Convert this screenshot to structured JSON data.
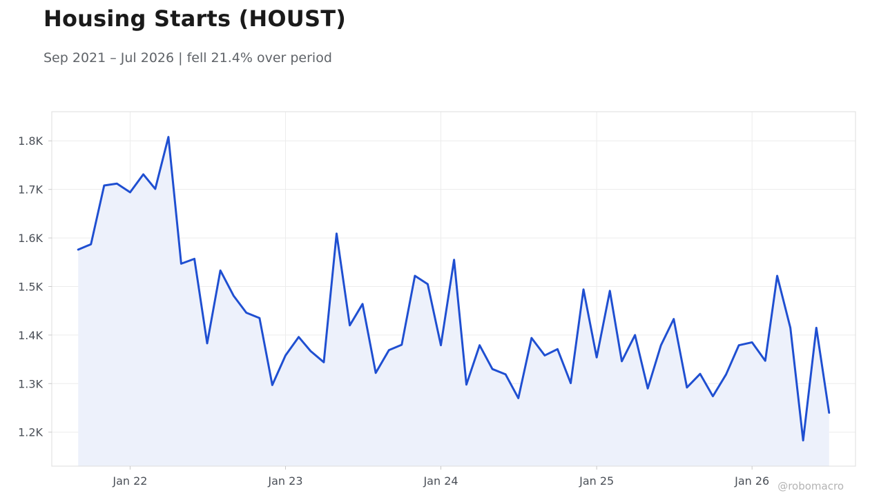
{
  "header": {
    "title": "Housing Starts (HOUST)",
    "subtitle": "Sep 2021 – Jul 2026 | fell 21.4% over period"
  },
  "watermark": "@robomacro",
  "colors": {
    "line": "#1f4fd1",
    "area": "#edf1fb",
    "grid": "#ececec",
    "frame": "#dddddd"
  },
  "chart_data": {
    "type": "area",
    "x_axis": {
      "type": "date",
      "range": [
        "2021-07-01",
        "2026-09-01"
      ],
      "ticks": [
        {
          "date": "2022-01-01",
          "label": "Jan 22"
        },
        {
          "date": "2023-01-01",
          "label": "Jan 23"
        },
        {
          "date": "2024-01-01",
          "label": "Jan 24"
        },
        {
          "date": "2025-01-01",
          "label": "Jan 25"
        },
        {
          "date": "2026-01-01",
          "label": "Jan 26"
        }
      ]
    },
    "y_axis": {
      "range": [
        1130,
        1860
      ],
      "ticks": [
        {
          "value": 1200,
          "label": "1.2K"
        },
        {
          "value": 1300,
          "label": "1.3K"
        },
        {
          "value": 1400,
          "label": "1.4K"
        },
        {
          "value": 1500,
          "label": "1.5K"
        },
        {
          "value": 1600,
          "label": "1.6K"
        },
        {
          "value": 1700,
          "label": "1.7K"
        },
        {
          "value": 1800,
          "label": "1.8K"
        }
      ]
    },
    "grid": true,
    "legend": "none",
    "series": [
      {
        "points": [
          [
            "2021-09-01",
            1576
          ],
          [
            "2021-10-01",
            1587
          ],
          [
            "2021-11-01",
            1708
          ],
          [
            "2021-12-01",
            1712
          ],
          [
            "2022-01-01",
            1694
          ],
          [
            "2022-02-01",
            1731
          ],
          [
            "2022-03-01",
            1701
          ],
          [
            "2022-04-01",
            1808
          ],
          [
            "2022-05-01",
            1547
          ],
          [
            "2022-06-01",
            1557
          ],
          [
            "2022-07-01",
            1383
          ],
          [
            "2022-08-01",
            1533
          ],
          [
            "2022-09-01",
            1481
          ],
          [
            "2022-10-01",
            1446
          ],
          [
            "2022-11-01",
            1435
          ],
          [
            "2022-12-01",
            1297
          ],
          [
            "2023-01-01",
            1358
          ],
          [
            "2023-02-01",
            1396
          ],
          [
            "2023-03-01",
            1367
          ],
          [
            "2023-04-01",
            1344
          ],
          [
            "2023-05-01",
            1609
          ],
          [
            "2023-06-01",
            1420
          ],
          [
            "2023-07-01",
            1464
          ],
          [
            "2023-08-01",
            1322
          ],
          [
            "2023-09-01",
            1369
          ],
          [
            "2023-10-01",
            1380
          ],
          [
            "2023-11-01",
            1522
          ],
          [
            "2023-12-01",
            1505
          ],
          [
            "2024-01-01",
            1379
          ],
          [
            "2024-02-01",
            1555
          ],
          [
            "2024-03-01",
            1298
          ],
          [
            "2024-04-01",
            1379
          ],
          [
            "2024-05-01",
            1330
          ],
          [
            "2024-06-01",
            1319
          ],
          [
            "2024-07-01",
            1270
          ],
          [
            "2024-08-01",
            1394
          ],
          [
            "2024-09-01",
            1358
          ],
          [
            "2024-10-01",
            1371
          ],
          [
            "2024-11-01",
            1301
          ],
          [
            "2024-12-01",
            1494
          ],
          [
            "2025-01-01",
            1354
          ],
          [
            "2025-02-01",
            1491
          ],
          [
            "2025-03-01",
            1346
          ],
          [
            "2025-04-01",
            1400
          ],
          [
            "2025-05-01",
            1290
          ],
          [
            "2025-06-01",
            1379
          ],
          [
            "2025-07-01",
            1433
          ],
          [
            "2025-08-01",
            1292
          ],
          [
            "2025-09-01",
            1320
          ],
          [
            "2025-10-01",
            1274
          ],
          [
            "2025-11-01",
            1319
          ],
          [
            "2025-12-01",
            1379
          ],
          [
            "2026-01-01",
            1385
          ],
          [
            "2026-02-01",
            1347
          ],
          [
            "2026-03-01",
            1522
          ],
          [
            "2026-04-01",
            1415
          ],
          [
            "2026-05-01",
            1183
          ],
          [
            "2026-06-01",
            1415
          ],
          [
            "2026-07-01",
            1240
          ]
        ]
      }
    ]
  }
}
